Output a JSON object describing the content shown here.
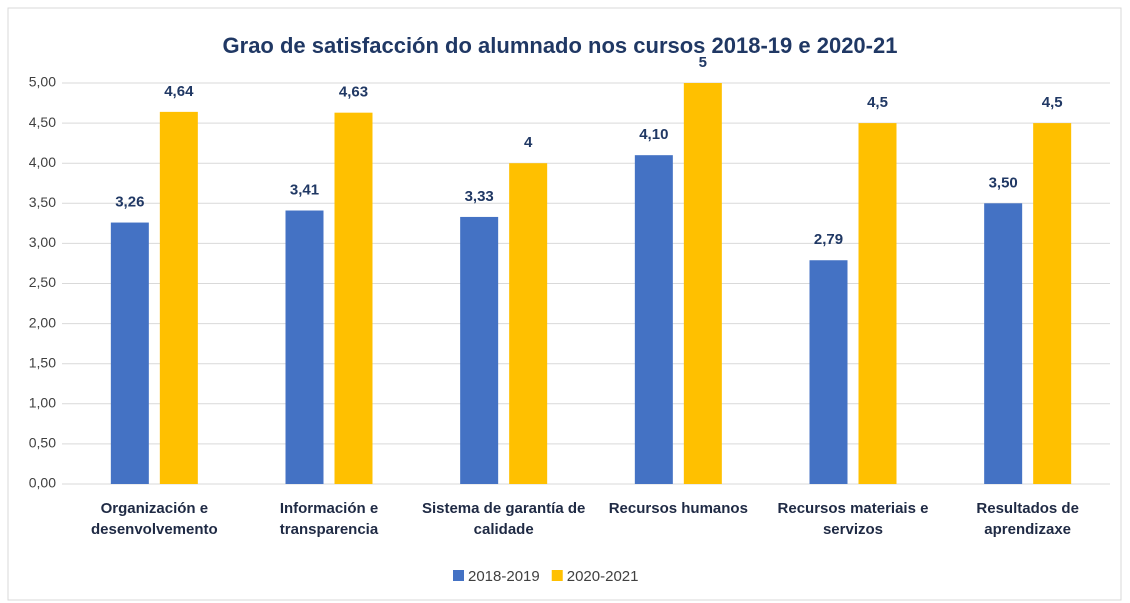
{
  "chart_data": {
    "type": "bar",
    "title": "Grao de satisfacción do alumnado nos cursos 2018-19 e 2020-21",
    "categories": [
      "Organización e desenvolvemento",
      "Información e transparencia",
      "Sistema de garantía de calidade",
      "Recursos humanos",
      "Recursos materiais e servizos",
      "Resultados de aprendizaxe"
    ],
    "series": [
      {
        "name": "2018-2019",
        "color": "#4472c4",
        "values": [
          3.26,
          3.41,
          3.33,
          4.1,
          2.79,
          3.5
        ],
        "value_labels": [
          "3,26",
          "3,41",
          "3,33",
          "4,10",
          "2,79",
          "3,50"
        ]
      },
      {
        "name": "2020-2021",
        "color": "#ffc000",
        "values": [
          4.64,
          4.63,
          4,
          5,
          4.5,
          4.5
        ],
        "value_labels": [
          "4,64",
          "4,63",
          "4",
          "5",
          "4,5",
          "4,5"
        ]
      }
    ],
    "ylim": [
      0,
      5
    ],
    "yticks": [
      {
        "value": 0,
        "label": "0,00"
      },
      {
        "value": 0.5,
        "label": "0,50"
      },
      {
        "value": 1,
        "label": "1,00"
      },
      {
        "value": 1.5,
        "label": "1,50"
      },
      {
        "value": 2,
        "label": "2,00"
      },
      {
        "value": 2.5,
        "label": "2,50"
      },
      {
        "value": 3,
        "label": "3,00"
      },
      {
        "value": 3.5,
        "label": "3,50"
      },
      {
        "value": 4,
        "label": "4,00"
      },
      {
        "value": 4.5,
        "label": "4,50"
      },
      {
        "value": 5,
        "label": "5,00"
      }
    ],
    "grid": true,
    "legend": "bottom"
  }
}
